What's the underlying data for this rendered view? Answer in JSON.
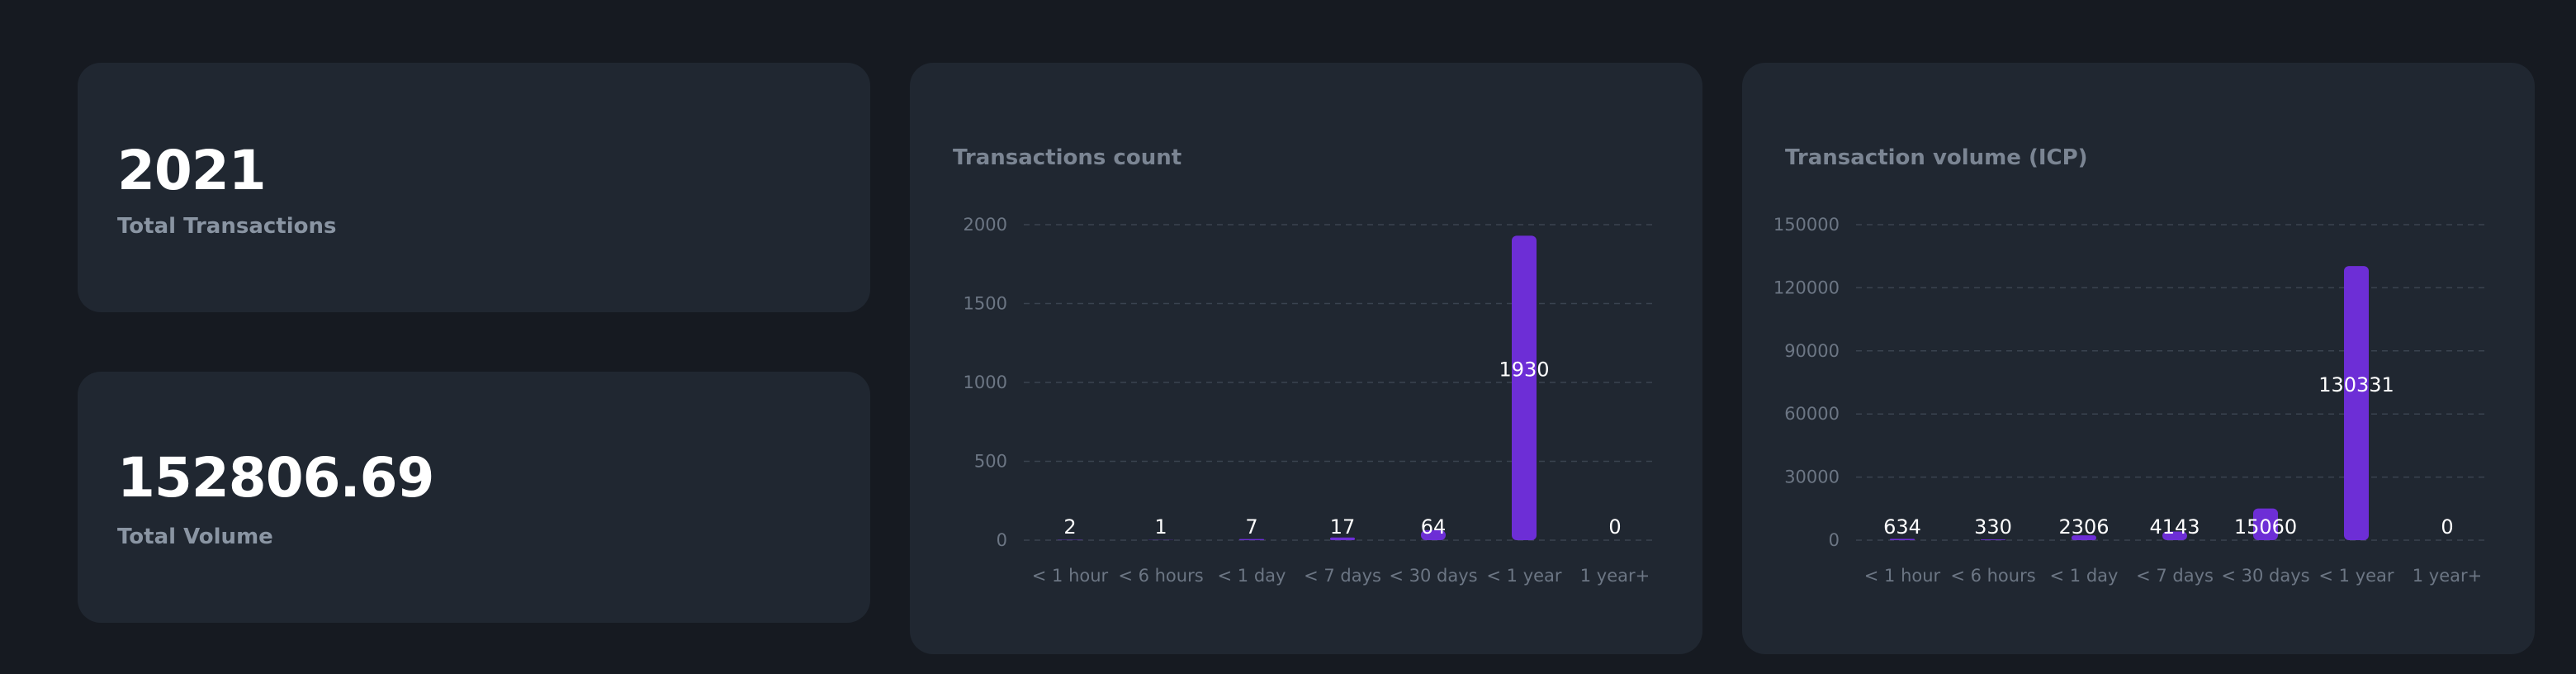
{
  "stats": {
    "total_transactions": {
      "value": "2021",
      "label": "Total Transactions"
    },
    "total_volume": {
      "value": "152806.69",
      "label": "Total Volume"
    }
  },
  "colors": {
    "background": "#161a21",
    "card": "#202731",
    "bar": "#6d2ed6",
    "grid": "#3a4350"
  },
  "chart_data": [
    {
      "type": "bar",
      "title": "Transactions count",
      "categories": [
        "< 1 hour",
        "< 6 hours",
        "< 1 day",
        "< 7 days",
        "< 30 days",
        "< 1 year",
        "1 year+"
      ],
      "values": [
        2,
        1,
        7,
        17,
        64,
        1930,
        0
      ],
      "ylim": [
        0,
        2000
      ],
      "yticks": [
        0,
        500,
        1000,
        1500,
        2000
      ],
      "grid": true,
      "data_labels": true
    },
    {
      "type": "bar",
      "title": "Transaction volume (ICP)",
      "categories": [
        "< 1 hour",
        "< 6 hours",
        "< 1 day",
        "< 7 days",
        "< 30 days",
        "< 1 year",
        "1 year+"
      ],
      "values": [
        634,
        330,
        2306,
        4143,
        15060,
        130331,
        0
      ],
      "ylim": [
        0,
        150000
      ],
      "yticks": [
        0,
        30000,
        60000,
        90000,
        120000,
        150000
      ],
      "grid": true,
      "data_labels": true
    }
  ]
}
